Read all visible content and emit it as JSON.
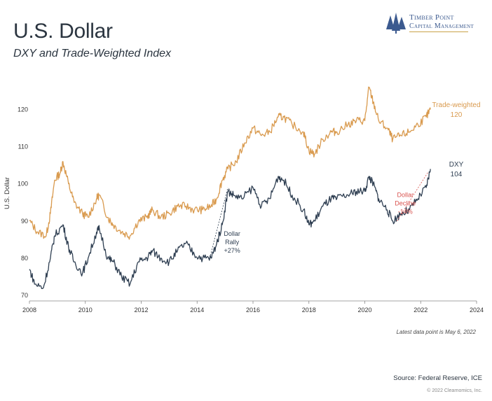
{
  "header": {
    "title": "U.S. Dollar",
    "subtitle": "DXY and Trade-Weighted Index"
  },
  "logo": {
    "line1": "Timber Point",
    "line2": "Capital Management"
  },
  "colors": {
    "trade_weighted": "#d99a4e",
    "dxy": "#2f3f52",
    "rally_annotation": "#2f3f52",
    "decline_annotation": "#d9534f",
    "axis": "#888888",
    "logo": "#3c5a8f"
  },
  "chart_data": {
    "type": "line",
    "ylabel": "U.S. Dollar",
    "xlabel": "",
    "xlim": [
      2008,
      2024
    ],
    "ylim": [
      70,
      125
    ],
    "x_ticks": [
      "2008",
      "2010",
      "2012",
      "2014",
      "2016",
      "2018",
      "2020",
      "2022",
      "2024"
    ],
    "y_ticks": [
      "70",
      "80",
      "90",
      "100",
      "110",
      "120"
    ],
    "grid": false,
    "series": [
      {
        "name": "Trade-weighted",
        "end_label": "120",
        "points": [
          [
            2008.0,
            90
          ],
          [
            2008.3,
            87
          ],
          [
            2008.6,
            86
          ],
          [
            2008.75,
            92
          ],
          [
            2008.9,
            101
          ],
          [
            2009.1,
            103
          ],
          [
            2009.2,
            106
          ],
          [
            2009.4,
            100
          ],
          [
            2009.6,
            95
          ],
          [
            2009.9,
            92
          ],
          [
            2010.1,
            91
          ],
          [
            2010.4,
            96
          ],
          [
            2010.5,
            97
          ],
          [
            2010.8,
            91
          ],
          [
            2011.0,
            89
          ],
          [
            2011.3,
            87
          ],
          [
            2011.6,
            86
          ],
          [
            2011.9,
            90
          ],
          [
            2012.2,
            91
          ],
          [
            2012.4,
            93
          ],
          [
            2012.7,
            91
          ],
          [
            2013.0,
            92
          ],
          [
            2013.3,
            94
          ],
          [
            2013.6,
            94
          ],
          [
            2013.9,
            93
          ],
          [
            2014.2,
            93
          ],
          [
            2014.5,
            94
          ],
          [
            2014.7,
            96
          ],
          [
            2014.9,
            101
          ],
          [
            2015.1,
            104
          ],
          [
            2015.4,
            106
          ],
          [
            2015.7,
            111
          ],
          [
            2016.0,
            115
          ],
          [
            2016.3,
            113
          ],
          [
            2016.6,
            114
          ],
          [
            2016.9,
            118
          ],
          [
            2017.1,
            118
          ],
          [
            2017.4,
            116
          ],
          [
            2017.8,
            114
          ],
          [
            2018.0,
            109
          ],
          [
            2018.2,
            108
          ],
          [
            2018.5,
            112
          ],
          [
            2018.8,
            114
          ],
          [
            2019.0,
            114
          ],
          [
            2019.4,
            116
          ],
          [
            2019.7,
            117
          ],
          [
            2020.0,
            117
          ],
          [
            2020.15,
            126
          ],
          [
            2020.3,
            122
          ],
          [
            2020.5,
            117
          ],
          [
            2020.8,
            115
          ],
          [
            2021.0,
            112
          ],
          [
            2021.3,
            113
          ],
          [
            2021.6,
            114
          ],
          [
            2021.9,
            116
          ],
          [
            2022.2,
            118
          ],
          [
            2022.35,
            120
          ]
        ]
      },
      {
        "name": "DXY",
        "end_label": "104",
        "points": [
          [
            2008.0,
            77
          ],
          [
            2008.2,
            73
          ],
          [
            2008.5,
            72
          ],
          [
            2008.75,
            80
          ],
          [
            2008.9,
            86
          ],
          [
            2009.2,
            89
          ],
          [
            2009.4,
            83
          ],
          [
            2009.6,
            79
          ],
          [
            2009.9,
            76
          ],
          [
            2010.1,
            80
          ],
          [
            2010.4,
            87
          ],
          [
            2010.5,
            88
          ],
          [
            2010.8,
            80
          ],
          [
            2011.0,
            79
          ],
          [
            2011.3,
            75
          ],
          [
            2011.6,
            73
          ],
          [
            2011.9,
            79
          ],
          [
            2012.2,
            80
          ],
          [
            2012.4,
            82
          ],
          [
            2012.7,
            80
          ],
          [
            2013.0,
            79
          ],
          [
            2013.3,
            82
          ],
          [
            2013.6,
            84
          ],
          [
            2013.9,
            81
          ],
          [
            2014.2,
            80
          ],
          [
            2014.5,
            80
          ],
          [
            2014.7,
            84
          ],
          [
            2014.9,
            89
          ],
          [
            2015.1,
            98
          ],
          [
            2015.3,
            97
          ],
          [
            2015.6,
            96
          ],
          [
            2016.0,
            99
          ],
          [
            2016.3,
            94
          ],
          [
            2016.6,
            96
          ],
          [
            2016.9,
            102
          ],
          [
            2017.1,
            101
          ],
          [
            2017.4,
            97
          ],
          [
            2017.8,
            93
          ],
          [
            2018.0,
            89
          ],
          [
            2018.2,
            90
          ],
          [
            2018.5,
            94
          ],
          [
            2018.8,
            96
          ],
          [
            2019.0,
            96
          ],
          [
            2019.4,
            97
          ],
          [
            2019.7,
            98
          ],
          [
            2020.0,
            98
          ],
          [
            2020.15,
            102
          ],
          [
            2020.3,
            100
          ],
          [
            2020.5,
            96
          ],
          [
            2020.8,
            93
          ],
          [
            2021.0,
            90
          ],
          [
            2021.3,
            92
          ],
          [
            2021.6,
            93
          ],
          [
            2021.9,
            96
          ],
          [
            2022.2,
            99
          ],
          [
            2022.35,
            104
          ]
        ]
      }
    ],
    "annotations": [
      {
        "name": "rally",
        "lines": [
          "Dollar",
          "Rally",
          "+27%"
        ],
        "from": [
          2014.45,
          80
        ],
        "to": [
          2015.1,
          99
        ],
        "text_at": [
          2015.25,
          86
        ]
      },
      {
        "name": "decline",
        "lines": [
          "Dollar",
          "Decline",
          "-14%"
        ],
        "from": [
          2021.15,
          90
        ],
        "to": [
          2022.25,
          103
        ],
        "text_at": [
          2021.45,
          96.5
        ]
      }
    ]
  },
  "footer": {
    "note": "Latest data point is May 6, 2022",
    "source": "Source: Federal Reserve, ICE",
    "copyright": "© 2022 Clearnomics, Inc."
  }
}
